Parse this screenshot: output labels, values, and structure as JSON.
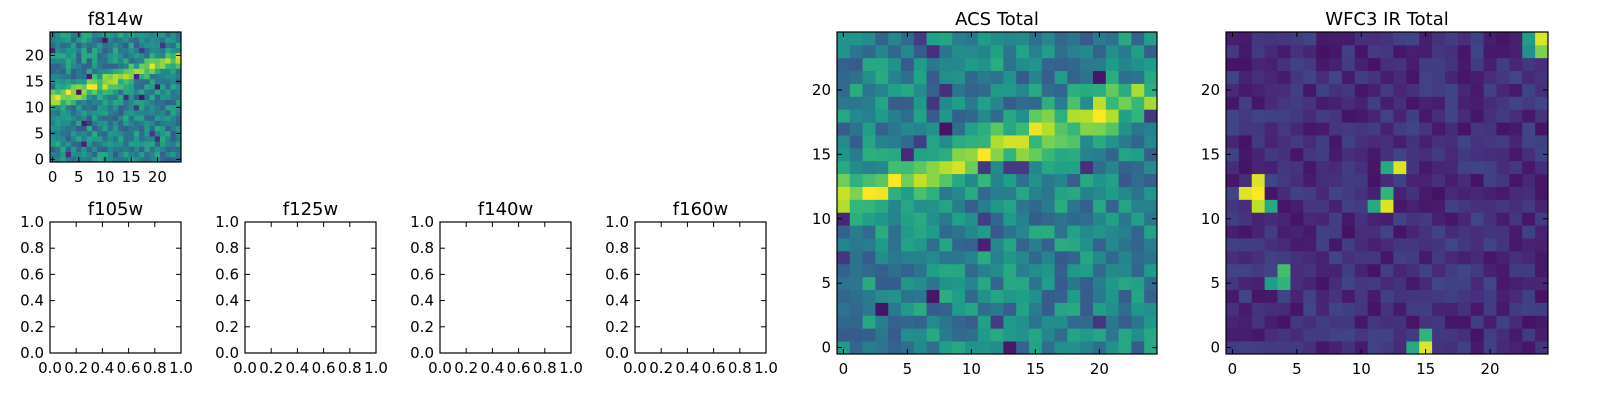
{
  "palette": {
    "viridis": [
      "#440154",
      "#482878",
      "#3e4989",
      "#31688e",
      "#26828e",
      "#1f9e89",
      "#35b779",
      "#6ece58",
      "#b5de2b",
      "#fde725"
    ],
    "frame": "#000000"
  },
  "chart_data": [
    {
      "title": "f814w",
      "type": "heatmap",
      "size": 25,
      "pattern": "diagonal-band",
      "band": {
        "x0": 0,
        "y0": 11.5,
        "x1": 24,
        "y1": 19.5
      },
      "xticks": [
        "0",
        "5",
        "10",
        "15",
        "20"
      ],
      "yticks": [
        "0",
        "5",
        "10",
        "15",
        "20"
      ],
      "xlim": [
        -0.5,
        24.5
      ],
      "ylim": [
        -0.5,
        24.5
      ]
    },
    {
      "title": "f105w",
      "type": "empty",
      "xticks": [
        "0.0",
        "0.2",
        "0.4",
        "0.6",
        "0.8",
        "1.0"
      ],
      "yticks": [
        "0.0",
        "0.2",
        "0.4",
        "0.6",
        "0.8",
        "1.0"
      ],
      "xlim": [
        0,
        1
      ],
      "ylim": [
        0,
        1
      ]
    },
    {
      "title": "f125w",
      "type": "empty",
      "xticks": [
        "0.0",
        "0.2",
        "0.4",
        "0.6",
        "0.8",
        "1.0"
      ],
      "yticks": [
        "0.0",
        "0.2",
        "0.4",
        "0.6",
        "0.8",
        "1.0"
      ],
      "xlim": [
        0,
        1
      ],
      "ylim": [
        0,
        1
      ]
    },
    {
      "title": "f140w",
      "type": "empty",
      "xticks": [
        "0.0",
        "0.2",
        "0.4",
        "0.6",
        "0.8",
        "1.0"
      ],
      "yticks": [
        "0.0",
        "0.2",
        "0.4",
        "0.6",
        "0.8",
        "1.0"
      ],
      "xlim": [
        0,
        1
      ],
      "ylim": [
        0,
        1
      ]
    },
    {
      "title": "f160w",
      "type": "empty",
      "xticks": [
        "0.0",
        "0.2",
        "0.4",
        "0.6",
        "0.8",
        "1.0"
      ],
      "yticks": [
        "0.0",
        "0.2",
        "0.4",
        "0.6",
        "0.8",
        "1.0"
      ],
      "xlim": [
        0,
        1
      ],
      "ylim": [
        0,
        1
      ]
    },
    {
      "title": "ACS Total",
      "type": "heatmap",
      "size": 25,
      "pattern": "diagonal-band",
      "band": {
        "x0": 0,
        "y0": 11.5,
        "x1": 24,
        "y1": 19.5
      },
      "xticks": [
        "0",
        "5",
        "10",
        "15",
        "20"
      ],
      "yticks": [
        "0",
        "5",
        "10",
        "15",
        "20"
      ],
      "xlim": [
        -0.5,
        24.5
      ],
      "ylim": [
        -0.5,
        24.5
      ]
    },
    {
      "title": "WFC3 IR Total",
      "type": "heatmap",
      "size": 25,
      "pattern": "sparse-hot",
      "hot_pixels": [
        [
          2,
          12,
          1.0
        ],
        [
          2,
          13,
          0.95
        ],
        [
          1,
          12,
          0.95
        ],
        [
          2,
          11,
          0.9
        ],
        [
          3,
          11,
          0.6
        ],
        [
          12,
          12,
          0.65
        ],
        [
          12,
          11,
          0.95
        ],
        [
          13,
          14,
          0.95
        ],
        [
          12,
          14,
          0.6
        ],
        [
          11,
          11,
          0.6
        ],
        [
          4,
          6,
          0.7
        ],
        [
          4,
          5,
          0.65
        ],
        [
          3,
          5,
          0.55
        ],
        [
          15,
          0,
          0.95
        ],
        [
          15,
          1,
          0.65
        ],
        [
          14,
          0,
          0.6
        ],
        [
          24,
          24,
          0.95
        ],
        [
          24,
          23,
          0.8
        ],
        [
          23,
          24,
          0.55
        ],
        [
          23,
          23,
          0.5
        ]
      ],
      "xticks": [
        "0",
        "5",
        "10",
        "15",
        "20"
      ],
      "yticks": [
        "0",
        "5",
        "10",
        "15",
        "20"
      ],
      "xlim": [
        -0.5,
        24.5
      ],
      "ylim": [
        -0.5,
        24.5
      ]
    }
  ]
}
